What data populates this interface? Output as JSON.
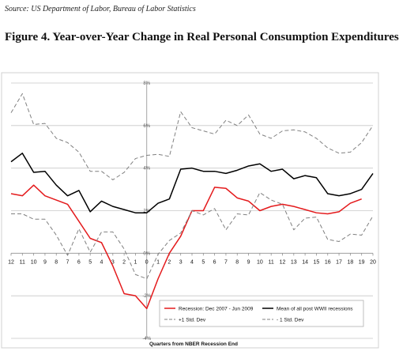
{
  "header": {
    "source": "Source: US Department of Labor, Bureau of Labor Statistics",
    "figure_title": "Figure 4. Year-over-Year Change in Real Personal Consumption Expenditures"
  },
  "chart_data": {
    "type": "line",
    "title": "",
    "xlabel": "Quarters from NBER Recession End",
    "ylabel": "",
    "x": [
      -12,
      -11,
      -10,
      -9,
      -8,
      -7,
      -6,
      -5,
      -4,
      -3,
      -2,
      -1,
      0,
      1,
      2,
      3,
      4,
      5,
      6,
      7,
      8,
      9,
      10,
      11,
      12,
      13,
      14,
      15,
      16,
      17,
      18,
      19,
      20
    ],
    "x_tick_labels": [
      "12",
      "11",
      "10",
      "9",
      "8",
      "7",
      "6",
      "5",
      "4",
      "3",
      "2",
      "1",
      "0",
      "1",
      "2",
      "3",
      "4",
      "5",
      "6",
      "7",
      "8",
      "9",
      "10",
      "11",
      "12",
      "13",
      "14",
      "15",
      "16",
      "17",
      "18",
      "19",
      "20"
    ],
    "ylim": [
      -4,
      8
    ],
    "y_ticks": [
      -4,
      -2,
      0,
      2,
      4,
      6,
      8
    ],
    "y_tick_labels": [
      "-4%",
      "-2%",
      "0%",
      "2%",
      "4%",
      "6%",
      "8%"
    ],
    "grid": "horizontal",
    "legend_position": "bottom",
    "series": [
      {
        "name": "Recession: Dec 2007 - Jun 2009",
        "color": "#e41a1c",
        "style": "solid",
        "values": [
          2.8,
          2.7,
          3.2,
          2.7,
          2.5,
          2.3,
          1.5,
          0.7,
          0.5,
          -0.6,
          -1.9,
          -2.0,
          -2.6,
          -1.2,
          0.0,
          0.8,
          2.0,
          2.0,
          3.1,
          3.05,
          2.6,
          2.45,
          2.0,
          2.2,
          2.3,
          2.2,
          2.05,
          1.9,
          1.85,
          1.95,
          2.35,
          2.55,
          null
        ]
      },
      {
        "name": "Mean of all post WWII recessions",
        "color": "#000000",
        "style": "solid",
        "values": [
          4.3,
          4.7,
          3.8,
          3.85,
          3.2,
          2.7,
          2.95,
          1.95,
          2.45,
          2.2,
          2.05,
          1.9,
          1.9,
          2.35,
          2.55,
          3.95,
          4.0,
          3.85,
          3.85,
          3.75,
          3.9,
          4.1,
          4.2,
          3.85,
          3.95,
          3.5,
          3.65,
          3.55,
          2.8,
          2.7,
          2.8,
          3.0,
          3.75
        ]
      },
      {
        "name": "+1 Std. Dev",
        "color": "#808080",
        "style": "dashed",
        "values": [
          6.6,
          7.5,
          6.05,
          6.1,
          5.4,
          5.2,
          4.75,
          3.85,
          3.85,
          3.45,
          3.8,
          4.45,
          4.6,
          4.65,
          4.55,
          6.65,
          5.9,
          5.75,
          5.6,
          6.25,
          6.0,
          6.5,
          5.6,
          5.4,
          5.75,
          5.8,
          5.7,
          5.4,
          4.95,
          4.7,
          4.75,
          5.2,
          6.0
        ]
      },
      {
        "name": "- 1 Std. Dev",
        "color": "#808080",
        "style": "dashed",
        "values": [
          1.85,
          1.85,
          1.6,
          1.6,
          0.85,
          -0.1,
          1.15,
          0.05,
          1.0,
          1.0,
          0.2,
          -1.0,
          -1.2,
          -0.05,
          0.6,
          0.95,
          2.0,
          1.8,
          2.1,
          1.1,
          1.85,
          1.8,
          2.85,
          2.5,
          2.3,
          1.1,
          1.65,
          1.7,
          0.65,
          0.55,
          0.9,
          0.85,
          1.75
        ]
      }
    ]
  }
}
